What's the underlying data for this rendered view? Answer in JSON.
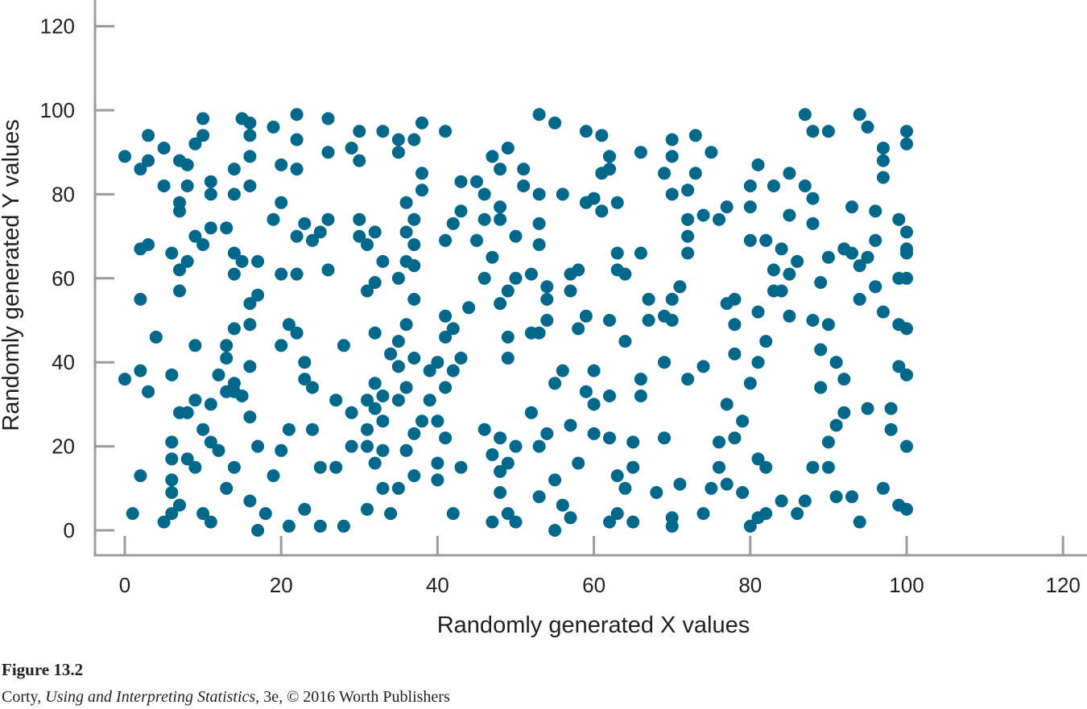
{
  "chart_data": {
    "type": "scatter",
    "title": "",
    "xlabel": "Randomly generated X values",
    "ylabel": "Randomly generated Y values",
    "xlim": [
      0,
      120
    ],
    "ylim": [
      0,
      120
    ],
    "x_ticks": [
      "0",
      "20",
      "40",
      "60",
      "80",
      "100",
      "120"
    ],
    "y_ticks": [
      "0",
      "20",
      "40",
      "60",
      "80",
      "100",
      "120"
    ],
    "grid": false,
    "legend": "none",
    "point_color": "#00688b",
    "axis_color": "#9b9b9b",
    "points": [
      [
        0,
        89
      ],
      [
        0,
        36
      ],
      [
        1,
        4
      ],
      [
        2,
        67
      ],
      [
        2,
        55
      ],
      [
        2,
        38
      ],
      [
        2,
        86
      ],
      [
        2,
        13
      ],
      [
        3,
        88
      ],
      [
        3,
        68
      ],
      [
        3,
        94
      ],
      [
        3,
        33
      ],
      [
        4,
        46
      ],
      [
        5,
        91
      ],
      [
        5,
        82
      ],
      [
        5,
        2
      ],
      [
        6,
        66
      ],
      [
        6,
        37
      ],
      [
        6,
        21
      ],
      [
        6,
        17
      ],
      [
        6,
        12
      ],
      [
        6,
        9
      ],
      [
        6,
        4
      ],
      [
        7,
        88
      ],
      [
        7,
        78
      ],
      [
        7,
        76
      ],
      [
        7,
        62
      ],
      [
        7,
        57
      ],
      [
        7,
        28
      ],
      [
        7,
        6
      ],
      [
        8,
        87
      ],
      [
        8,
        82
      ],
      [
        8,
        64
      ],
      [
        8,
        28
      ],
      [
        8,
        17
      ],
      [
        9,
        92
      ],
      [
        9,
        70
      ],
      [
        9,
        31
      ],
      [
        9,
        15
      ],
      [
        9,
        44
      ],
      [
        10,
        98
      ],
      [
        10,
        94
      ],
      [
        10,
        68
      ],
      [
        10,
        24
      ],
      [
        10,
        4
      ],
      [
        11,
        83
      ],
      [
        11,
        80
      ],
      [
        11,
        72
      ],
      [
        11,
        30
      ],
      [
        11,
        21
      ],
      [
        11,
        2
      ],
      [
        12,
        37
      ],
      [
        12,
        19
      ],
      [
        13,
        72
      ],
      [
        13,
        44
      ],
      [
        13,
        41
      ],
      [
        13,
        33
      ],
      [
        13,
        10
      ],
      [
        14,
        86
      ],
      [
        14,
        80
      ],
      [
        14,
        66
      ],
      [
        14,
        61
      ],
      [
        14,
        48
      ],
      [
        14,
        35
      ],
      [
        14,
        33
      ],
      [
        14,
        15
      ],
      [
        15,
        98
      ],
      [
        15,
        64
      ],
      [
        15,
        32
      ],
      [
        16,
        97
      ],
      [
        16,
        94
      ],
      [
        16,
        89
      ],
      [
        16,
        82
      ],
      [
        16,
        54
      ],
      [
        16,
        49
      ],
      [
        16,
        39
      ],
      [
        16,
        27
      ],
      [
        16,
        7
      ],
      [
        17,
        64
      ],
      [
        17,
        56
      ],
      [
        17,
        20
      ],
      [
        17,
        0
      ],
      [
        18,
        4
      ],
      [
        19,
        96
      ],
      [
        19,
        74
      ],
      [
        19,
        13
      ],
      [
        20,
        87
      ],
      [
        20,
        78
      ],
      [
        20,
        61
      ],
      [
        20,
        44
      ],
      [
        20,
        19
      ],
      [
        21,
        49
      ],
      [
        21,
        24
      ],
      [
        21,
        1
      ],
      [
        22,
        93
      ],
      [
        22,
        86
      ],
      [
        22,
        70
      ],
      [
        22,
        61
      ],
      [
        22,
        47
      ],
      [
        22,
        99
      ],
      [
        23,
        73
      ],
      [
        23,
        40
      ],
      [
        23,
        36
      ],
      [
        23,
        5
      ],
      [
        24,
        69
      ],
      [
        24,
        34
      ],
      [
        24,
        24
      ],
      [
        25,
        71
      ],
      [
        25,
        15
      ],
      [
        25,
        1
      ],
      [
        26,
        90
      ],
      [
        26,
        98
      ],
      [
        26,
        74
      ],
      [
        26,
        62
      ],
      [
        27,
        31
      ],
      [
        27,
        15
      ],
      [
        28,
        44
      ],
      [
        28,
        1
      ],
      [
        29,
        28
      ],
      [
        29,
        91
      ],
      [
        29,
        20
      ],
      [
        30,
        95
      ],
      [
        30,
        74
      ],
      [
        30,
        70
      ],
      [
        30,
        88
      ],
      [
        31,
        68
      ],
      [
        31,
        57
      ],
      [
        31,
        31
      ],
      [
        31,
        24
      ],
      [
        31,
        20
      ],
      [
        31,
        5
      ],
      [
        32,
        71
      ],
      [
        32,
        59
      ],
      [
        32,
        47
      ],
      [
        32,
        35
      ],
      [
        32,
        29
      ],
      [
        32,
        16
      ],
      [
        33,
        95
      ],
      [
        33,
        64
      ],
      [
        33,
        32
      ],
      [
        33,
        26
      ],
      [
        33,
        19
      ],
      [
        33,
        10
      ],
      [
        34,
        42
      ],
      [
        34,
        4
      ],
      [
        35,
        93
      ],
      [
        35,
        90
      ],
      [
        35,
        60
      ],
      [
        35,
        45
      ],
      [
        35,
        39
      ],
      [
        35,
        31
      ],
      [
        35,
        10
      ],
      [
        36,
        78
      ],
      [
        36,
        64
      ],
      [
        36,
        49
      ],
      [
        36,
        34
      ],
      [
        36,
        19
      ],
      [
        36,
        71
      ],
      [
        37,
        93
      ],
      [
        37,
        74
      ],
      [
        37,
        68
      ],
      [
        37,
        63
      ],
      [
        37,
        55
      ],
      [
        37,
        41
      ],
      [
        37,
        23
      ],
      [
        37,
        13
      ],
      [
        38,
        97
      ],
      [
        38,
        85
      ],
      [
        38,
        81
      ],
      [
        38,
        26
      ],
      [
        39,
        31
      ],
      [
        39,
        38
      ],
      [
        40,
        40
      ],
      [
        40,
        26
      ],
      [
        40,
        16
      ],
      [
        40,
        12
      ],
      [
        41,
        95
      ],
      [
        41,
        69
      ],
      [
        41,
        51
      ],
      [
        41,
        46
      ],
      [
        41,
        34
      ],
      [
        41,
        22
      ],
      [
        42,
        73
      ],
      [
        42,
        38
      ],
      [
        42,
        4
      ],
      [
        42,
        48
      ],
      [
        43,
        83
      ],
      [
        43,
        76
      ],
      [
        43,
        41
      ],
      [
        43,
        15
      ],
      [
        44,
        53
      ],
      [
        45,
        69
      ],
      [
        45,
        83
      ],
      [
        46,
        80
      ],
      [
        46,
        74
      ],
      [
        46,
        60
      ],
      [
        46,
        24
      ],
      [
        47,
        65
      ],
      [
        47,
        18
      ],
      [
        47,
        2
      ],
      [
        47,
        89
      ],
      [
        48,
        77
      ],
      [
        48,
        74
      ],
      [
        48,
        54
      ],
      [
        48,
        22
      ],
      [
        48,
        14
      ],
      [
        48,
        9
      ],
      [
        48,
        86
      ],
      [
        49,
        91
      ],
      [
        49,
        57
      ],
      [
        49,
        46
      ],
      [
        49,
        41
      ],
      [
        49,
        16
      ],
      [
        49,
        4
      ],
      [
        50,
        70
      ],
      [
        50,
        60
      ],
      [
        50,
        20
      ],
      [
        50,
        2
      ],
      [
        51,
        82
      ],
      [
        51,
        86
      ],
      [
        52,
        47
      ],
      [
        52,
        28
      ],
      [
        52,
        61
      ],
      [
        53,
        99
      ],
      [
        53,
        80
      ],
      [
        53,
        73
      ],
      [
        53,
        68
      ],
      [
        53,
        47
      ],
      [
        53,
        20
      ],
      [
        53,
        8
      ],
      [
        54,
        58
      ],
      [
        54,
        55
      ],
      [
        54,
        50
      ],
      [
        54,
        23
      ],
      [
        55,
        97
      ],
      [
        55,
        35
      ],
      [
        55,
        12
      ],
      [
        55,
        0
      ],
      [
        56,
        80
      ],
      [
        56,
        38
      ],
      [
        56,
        6
      ],
      [
        57,
        61
      ],
      [
        57,
        57
      ],
      [
        57,
        25
      ],
      [
        57,
        3
      ],
      [
        58,
        62
      ],
      [
        58,
        48
      ],
      [
        58,
        16
      ],
      [
        59,
        78
      ],
      [
        59,
        95
      ],
      [
        59,
        51
      ],
      [
        59,
        33
      ],
      [
        60,
        79
      ],
      [
        60,
        38
      ],
      [
        60,
        30
      ],
      [
        60,
        23
      ],
      [
        61,
        85
      ],
      [
        61,
        76
      ],
      [
        61,
        94
      ],
      [
        62,
        89
      ],
      [
        62,
        86
      ],
      [
        62,
        50
      ],
      [
        62,
        32
      ],
      [
        62,
        22
      ],
      [
        62,
        2
      ],
      [
        63,
        78
      ],
      [
        63,
        66
      ],
      [
        63,
        62
      ],
      [
        63,
        13
      ],
      [
        63,
        4
      ],
      [
        64,
        61
      ],
      [
        64,
        45
      ],
      [
        64,
        10
      ],
      [
        65,
        21
      ],
      [
        65,
        15
      ],
      [
        65,
        2
      ],
      [
        66,
        90
      ],
      [
        66,
        66
      ],
      [
        66,
        36
      ],
      [
        66,
        32
      ],
      [
        67,
        55
      ],
      [
        67,
        50
      ],
      [
        68,
        9
      ],
      [
        69,
        85
      ],
      [
        69,
        51
      ],
      [
        69,
        40
      ],
      [
        69,
        22
      ],
      [
        70,
        93
      ],
      [
        70,
        89
      ],
      [
        70,
        80
      ],
      [
        70,
        55
      ],
      [
        70,
        50
      ],
      [
        70,
        3
      ],
      [
        70,
        1
      ],
      [
        71,
        58
      ],
      [
        71,
        11
      ],
      [
        72,
        81
      ],
      [
        72,
        74
      ],
      [
        72,
        70
      ],
      [
        72,
        66
      ],
      [
        72,
        36
      ],
      [
        73,
        85
      ],
      [
        73,
        94
      ],
      [
        74,
        75
      ],
      [
        74,
        39
      ],
      [
        74,
        4
      ],
      [
        75,
        90
      ],
      [
        75,
        10
      ],
      [
        76,
        74
      ],
      [
        76,
        21
      ],
      [
        76,
        15
      ],
      [
        77,
        77
      ],
      [
        77,
        54
      ],
      [
        77,
        30
      ],
      [
        77,
        11
      ],
      [
        78,
        49
      ],
      [
        78,
        55
      ],
      [
        78,
        42
      ],
      [
        78,
        22
      ],
      [
        79,
        26
      ],
      [
        79,
        9
      ],
      [
        80,
        82
      ],
      [
        80,
        77
      ],
      [
        80,
        69
      ],
      [
        80,
        35
      ],
      [
        80,
        1
      ],
      [
        81,
        87
      ],
      [
        81,
        52
      ],
      [
        81,
        40
      ],
      [
        81,
        17
      ],
      [
        81,
        3
      ],
      [
        82,
        69
      ],
      [
        82,
        45
      ],
      [
        82,
        15
      ],
      [
        82,
        4
      ],
      [
        83,
        82
      ],
      [
        83,
        62
      ],
      [
        83,
        57
      ],
      [
        84,
        67
      ],
      [
        84,
        57
      ],
      [
        84,
        7
      ],
      [
        85,
        85
      ],
      [
        85,
        75
      ],
      [
        85,
        61
      ],
      [
        85,
        51
      ],
      [
        86,
        64
      ],
      [
        86,
        4
      ],
      [
        87,
        99
      ],
      [
        87,
        82
      ],
      [
        87,
        7
      ],
      [
        88,
        95
      ],
      [
        88,
        79
      ],
      [
        88,
        73
      ],
      [
        88,
        50
      ],
      [
        88,
        15
      ],
      [
        89,
        59
      ],
      [
        89,
        43
      ],
      [
        89,
        34
      ],
      [
        90,
        95
      ],
      [
        90,
        65
      ],
      [
        90,
        49
      ],
      [
        90,
        21
      ],
      [
        90,
        15
      ],
      [
        91,
        40
      ],
      [
        91,
        25
      ],
      [
        91,
        8
      ],
      [
        92,
        67
      ],
      [
        92,
        36
      ],
      [
        92,
        28
      ],
      [
        93,
        77
      ],
      [
        93,
        66
      ],
      [
        93,
        8
      ],
      [
        94,
        99
      ],
      [
        94,
        63
      ],
      [
        94,
        55
      ],
      [
        94,
        2
      ],
      [
        95,
        96
      ],
      [
        95,
        65
      ],
      [
        95,
        29
      ],
      [
        96,
        69
      ],
      [
        96,
        58
      ],
      [
        96,
        76
      ],
      [
        97,
        91
      ],
      [
        97,
        88
      ],
      [
        97,
        84
      ],
      [
        97,
        52
      ],
      [
        97,
        10
      ],
      [
        98,
        29
      ],
      [
        98,
        24
      ],
      [
        99,
        60
      ],
      [
        99,
        74
      ],
      [
        99,
        49
      ],
      [
        99,
        39
      ],
      [
        99,
        6
      ],
      [
        100,
        67
      ],
      [
        100,
        92
      ],
      [
        100,
        48
      ],
      [
        100,
        37
      ],
      [
        100,
        20
      ],
      [
        100,
        60
      ],
      [
        100,
        71
      ],
      [
        100,
        66
      ],
      [
        100,
        95
      ],
      [
        100,
        5
      ]
    ]
  },
  "caption": {
    "figure_label": "Figure 13.2",
    "author": "Corty, ",
    "book_title": "Using and Interpreting Statistics,",
    "edition_publisher": " 3e, © 2016 Worth Publishers"
  }
}
